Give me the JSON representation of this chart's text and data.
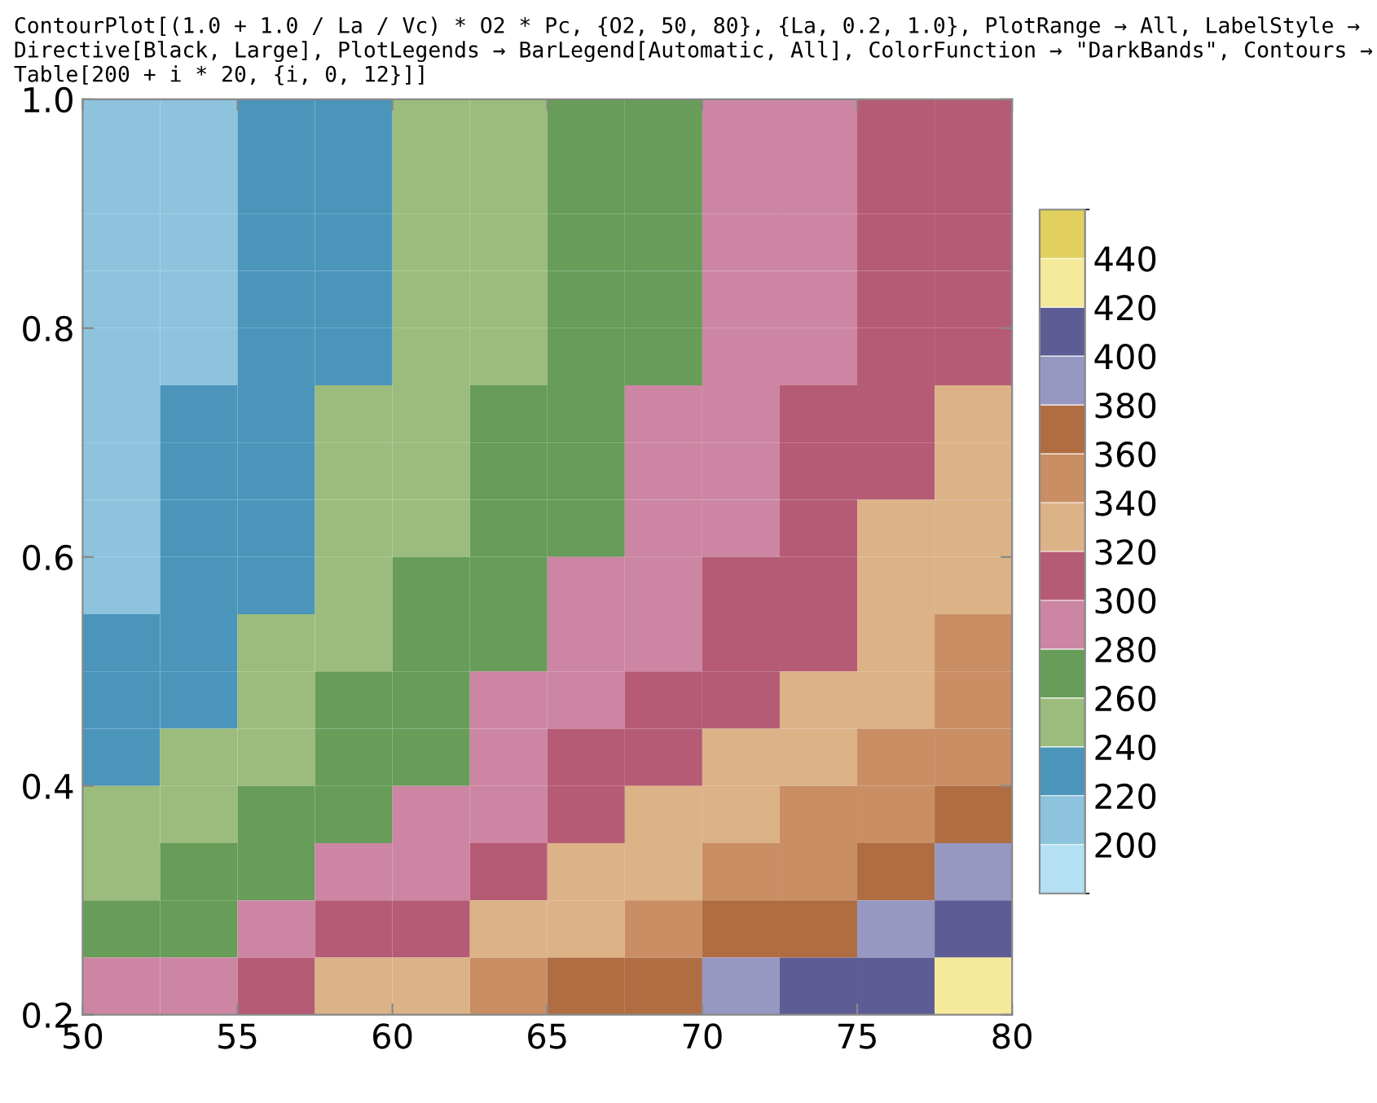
{
  "chart_data": {
    "type": "heatmap",
    "title": "ContourPlot[(1.0 + 1.0 / La / Vc) * O2 * Pc, {O2, 50, 80}, {La, 0.2, 1.0}, PlotRange → All, LabelStyle → Directive[Black, Large], PlotLegends → BarLegend[Automatic, All], ColorFunction → \"DarkBands\", Contours → Table[200 + i * 20, {i, 0, 12}]]",
    "cells": [
      [
        201,
        211,
        221,
        231,
        241,
        250,
        260,
        270,
        280,
        290,
        300,
        309
      ],
      [
        203,
        213,
        222,
        232,
        242,
        252,
        262,
        272,
        282,
        292,
        302,
        311
      ],
      [
        204,
        214,
        224,
        234,
        244,
        254,
        264,
        274,
        284,
        294,
        304,
        314
      ],
      [
        206,
        216,
        226,
        236,
        246,
        256,
        266,
        276,
        286,
        296,
        306,
        316
      ],
      [
        208,
        218,
        228,
        238,
        248,
        258,
        268,
        278,
        289,
        299,
        309,
        319
      ],
      [
        210,
        220,
        230,
        240,
        251,
        261,
        271,
        281,
        291,
        302,
        312,
        322
      ],
      [
        212,
        222,
        233,
        243,
        253,
        264,
        274,
        284,
        295,
        305,
        315,
        326
      ],
      [
        215,
        225,
        236,
        246,
        257,
        267,
        278,
        288,
        299,
        309,
        320,
        330
      ],
      [
        218,
        229,
        239,
        250,
        261,
        271,
        282,
        293,
        303,
        314,
        324,
        335
      ],
      [
        222,
        233,
        244,
        254,
        265,
        276,
        287,
        298,
        309,
        319,
        330,
        341
      ],
      [
        227,
        238,
        249,
        260,
        271,
        282,
        293,
        304,
        315,
        326,
        337,
        348
      ],
      [
        232,
        244,
        255,
        266,
        278,
        289,
        300,
        312,
        323,
        334,
        346,
        357
      ],
      [
        240,
        251,
        263,
        275,
        287,
        298,
        310,
        322,
        333,
        345,
        357,
        368
      ],
      [
        249,
        262,
        274,
        286,
        298,
        310,
        322,
        335,
        347,
        359,
        371,
        383
      ],
      [
        263,
        275,
        288,
        301,
        314,
        327,
        339,
        352,
        365,
        378,
        391,
        403
      ],
      [
        281,
        295,
        309,
        323,
        336,
        350,
        364,
        377,
        391,
        405,
        419,
        432
      ]
    ],
    "colors": [
      "#b3e1f3",
      "#8dc3dd",
      "#4b95bb",
      "#9bbc7c",
      "#679c59",
      "#cc86a3",
      "#b65b75",
      "#dcb287",
      "#c98e64",
      "#b06d42",
      "#9698c2",
      "#5d5c95",
      "#f5ea9b",
      "#e1d05d"
    ],
    "xlim": [
      50,
      80
    ],
    "ylim": [
      0.2,
      1.0
    ],
    "xticks": [
      50,
      55,
      60,
      65,
      70,
      75,
      80
    ],
    "yticks": [
      0.2,
      0.4,
      0.6,
      0.8,
      {
        "value": 1,
        "label": "1.0"
      }
    ],
    "clim": [
      180,
      460
    ],
    "cticks": [
      200,
      220,
      240,
      260,
      280,
      300,
      320,
      340,
      360,
      380,
      400,
      420,
      440
    ],
    "grid": false
  }
}
